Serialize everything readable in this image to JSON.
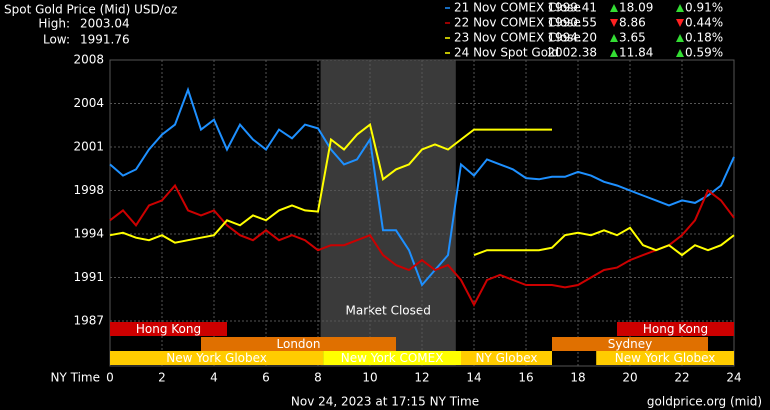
{
  "chart_data": {
    "type": "line",
    "title": "Spot Gold Price (Mid) USD/oz",
    "stats": [
      {
        "label": "High:",
        "value": "2003.04"
      },
      {
        "label": "Low:",
        "value": "1991.76"
      }
    ],
    "x_label": "NY Time",
    "footer": "Nov 24, 2023 at 17:15 NY Time",
    "source": "goldprice.org (mid)",
    "annotation": "Market Closed",
    "shaded_range": [
      8.1,
      13.3
    ],
    "xlim": [
      0,
      24
    ],
    "xticks": [
      0,
      2,
      4,
      6,
      8,
      10,
      12,
      14,
      16,
      18,
      20,
      22,
      24
    ],
    "ylim": [
      1987,
      2008
    ],
    "yticks": [
      {
        "value": 1987,
        "label": "1987"
      },
      {
        "value": 1990.5,
        "label": "1991"
      },
      {
        "value": 1994,
        "label": "1994"
      },
      {
        "value": 1997.5,
        "label": "1998"
      },
      {
        "value": 2001,
        "label": "2001"
      },
      {
        "value": 2004.5,
        "label": "2004"
      },
      {
        "value": 2008,
        "label": "2008"
      }
    ],
    "grid": true,
    "x": [
      0,
      0.5,
      1,
      1.5,
      2,
      2.5,
      3,
      3.5,
      4,
      4.5,
      5,
      5.5,
      6,
      6.5,
      7,
      7.5,
      8,
      8.5,
      9,
      9.5,
      10,
      10.5,
      11,
      11.5,
      12,
      12.5,
      13,
      13.5,
      14,
      14.5,
      15,
      15.5,
      16,
      16.5,
      17,
      17.5,
      18,
      18.5,
      19,
      19.5,
      20,
      20.5,
      21,
      21.5,
      22,
      22.5,
      23,
      23.5,
      24
    ],
    "series": [
      {
        "name": "21 Nov COMEX Close",
        "color": "#1e90ff",
        "close": "1999.41",
        "change": "18.09",
        "change_pct": "0.91%",
        "direction": "up",
        "values": [
          1999.6,
          1998.7,
          1999.2,
          2000.8,
          2002.0,
          2002.8,
          2005.6,
          2002.4,
          2003.2,
          2000.8,
          2002.8,
          2001.6,
          2000.8,
          2002.4,
          2001.7,
          2002.8,
          2002.5,
          2000.8,
          1999.6,
          2000.0,
          2001.6,
          1994.3,
          1994.3,
          1992.7,
          1989.9,
          1991.1,
          1992.3,
          1999.6,
          1998.7,
          2000.0,
          1999.6,
          1999.2,
          1998.5,
          1998.4,
          1998.6,
          1998.6,
          1999.0,
          1998.7,
          1998.2,
          1997.9,
          1997.5,
          1997.1,
          1996.7,
          1996.3,
          1996.7,
          1996.5,
          1997.1,
          1997.9,
          2000.2
        ]
      },
      {
        "name": "22 Nov COMEX Close",
        "color": "#cc0000",
        "close": "1990.55",
        "change": "8.86",
        "change_pct": "0.44%",
        "direction": "down",
        "values": [
          1995.1,
          1995.9,
          1994.7,
          1996.3,
          1996.7,
          1997.9,
          1995.9,
          1995.5,
          1995.9,
          1994.7,
          1993.9,
          1993.5,
          1994.3,
          1993.5,
          1993.9,
          1993.5,
          1992.7,
          1993.1,
          1993.1,
          1993.5,
          1993.9,
          1992.3,
          1991.5,
          1991.1,
          1991.9,
          1991.1,
          1991.5,
          1990.3,
          1988.3,
          1990.3,
          1990.7,
          1990.3,
          1989.9,
          1989.9,
          1989.9,
          1989.7,
          1989.9,
          1990.5,
          1991.1,
          1991.3,
          1991.9,
          1992.3,
          1992.7,
          1993.1,
          1993.9,
          1995.1,
          1997.5,
          1996.7,
          1995.3
        ]
      },
      {
        "name": "23 Nov COMEX Close",
        "color": "#ffff00",
        "close": "1994.20",
        "change": "3.65",
        "change_pct": "0.18%",
        "direction": "up",
        "values": [
          null,
          null,
          null,
          null,
          null,
          null,
          null,
          null,
          null,
          null,
          null,
          null,
          null,
          null,
          null,
          null,
          null,
          null,
          null,
          null,
          null,
          null,
          null,
          null,
          null,
          null,
          null,
          null,
          1992.3,
          1992.7,
          1992.7,
          1992.7,
          1992.7,
          1992.7,
          1992.9,
          1993.9,
          1994.1,
          1993.9,
          1994.3,
          1993.9,
          1994.5,
          1993.1,
          1992.7,
          1993.1,
          1992.3,
          1993.1,
          1992.7,
          1993.1,
          1993.9
        ]
      },
      {
        "name": "24 Nov Spot Gold",
        "color": "#ffff00",
        "close": "2002.38",
        "change": "11.84",
        "change_pct": "0.59%",
        "direction": "up",
        "values": [
          1993.9,
          1994.1,
          1993.7,
          1993.5,
          1993.9,
          1993.3,
          1993.5,
          1993.7,
          1993.9,
          1995.1,
          1994.7,
          1995.5,
          1995.1,
          1995.9,
          1996.3,
          1995.9,
          1995.8,
          2001.6,
          2000.8,
          2002.0,
          2002.8,
          1998.4,
          1999.2,
          1999.6,
          2000.8,
          2001.2,
          2000.8,
          2001.6,
          2002.4,
          2002.4,
          2002.4,
          2002.4,
          2002.4,
          2002.4,
          2002.4,
          null,
          null,
          null,
          null,
          null,
          null,
          null,
          null,
          null,
          null,
          null,
          null,
          null,
          null
        ]
      }
    ],
    "sessions": [
      {
        "label": "Hong Kong",
        "start": 0,
        "end": 4.5,
        "row": 0,
        "color": "#cc0000"
      },
      {
        "label": "Hong Kong",
        "start": 19.5,
        "end": 24,
        "row": 0,
        "color": "#cc0000"
      },
      {
        "label": "London",
        "start": 3.5,
        "end": 11,
        "row": 1,
        "color": "#e07000"
      },
      {
        "label": "Sydney",
        "start": 17,
        "end": 23,
        "row": 1,
        "color": "#e07000"
      },
      {
        "label": "New York Globex",
        "start": 0,
        "end": 8.2,
        "row": 2,
        "color": "#ffcc00"
      },
      {
        "label": "New York COMEX",
        "start": 8.2,
        "end": 13.5,
        "row": 2,
        "color": "#ffff00"
      },
      {
        "label": "NY Globex",
        "start": 13.5,
        "end": 17,
        "row": 2,
        "color": "#ffcc00"
      },
      {
        "label": "New York Globex",
        "start": 18.7,
        "end": 24,
        "row": 2,
        "color": "#ffcc00"
      }
    ]
  }
}
